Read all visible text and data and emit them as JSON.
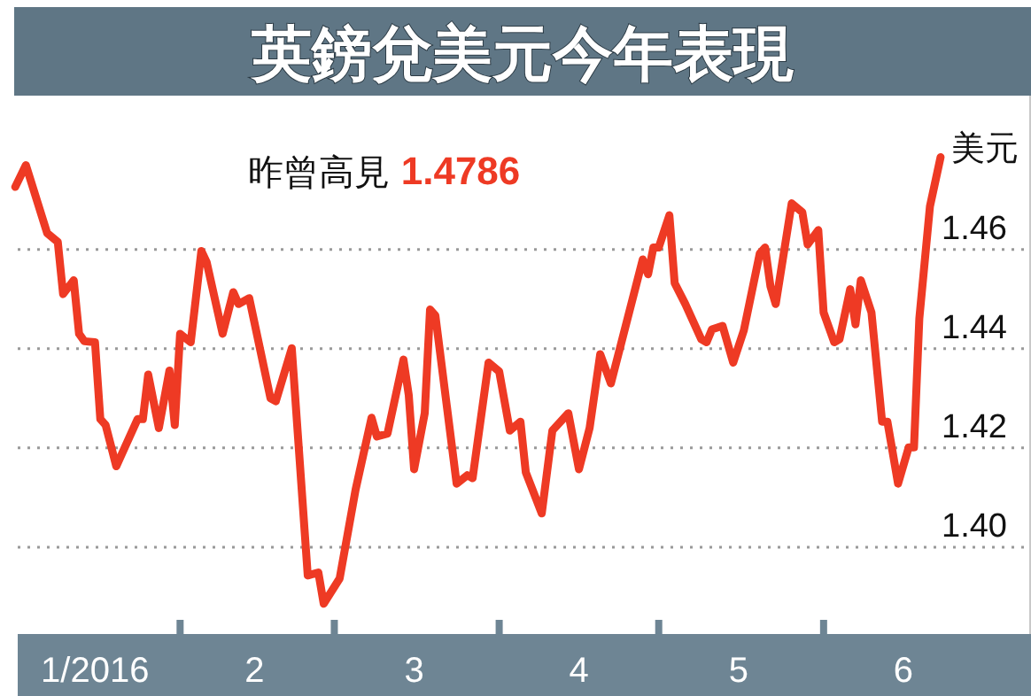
{
  "chart_data": {
    "type": "line",
    "title": "英鎊兌美元今年表現",
    "ylabel": "美元",
    "annotations": [
      "昨曾高見 **1.4786**"
    ],
    "x": [
      "2016-01-01",
      "2016-01-03",
      "2016-01-07",
      "2016-01-09",
      "2016-01-10",
      "2016-01-12",
      "2016-01-13",
      "2016-01-14",
      "2016-01-16",
      "2016-01-17",
      "2016-01-18",
      "2016-01-20",
      "2016-01-24",
      "2016-01-25",
      "2016-01-26",
      "2016-01-28",
      "2016-01-30",
      "2016-01-31",
      "2016-02-01",
      "2016-02-03",
      "2016-02-05",
      "2016-02-06",
      "2016-02-09",
      "2016-02-11",
      "2016-02-12",
      "2016-02-14",
      "2016-02-16",
      "2016-02-18",
      "2016-02-19",
      "2016-02-22",
      "2016-02-25",
      "2016-02-27",
      "2016-02-28",
      "2016-03-02",
      "2016-03-05",
      "2016-03-08",
      "2016-03-09",
      "2016-03-11",
      "2016-03-14",
      "2016-03-15",
      "2016-03-16",
      "2016-03-18",
      "2016-03-19",
      "2016-03-20",
      "2016-03-24",
      "2016-03-26",
      "2016-03-27",
      "2016-03-30",
      "2016-04-01",
      "2016-04-03",
      "2016-04-05",
      "2016-04-06",
      "2016-04-09",
      "2016-04-11",
      "2016-04-14",
      "2016-04-16",
      "2016-04-18",
      "2016-04-20",
      "2016-04-22",
      "2016-04-28",
      "2016-04-29",
      "2016-04-30",
      "2016-05-01",
      "2016-05-03",
      "2016-05-04",
      "2016-05-06",
      "2016-05-09",
      "2016-05-10",
      "2016-05-11",
      "2016-05-13",
      "2016-05-15",
      "2016-05-17",
      "2016-05-20",
      "2016-05-21",
      "2016-05-22",
      "2016-05-23",
      "2016-05-26",
      "2016-05-28",
      "2016-05-29",
      "2016-05-31",
      "2016-06-01",
      "2016-06-03",
      "2016-06-04",
      "2016-06-06",
      "2016-06-07",
      "2016-06-08",
      "2016-06-10",
      "2016-06-12",
      "2016-06-13",
      "2016-06-15",
      "2016-06-17",
      "2016-06-18",
      "2016-06-19",
      "2016-06-21",
      "2016-06-23"
    ],
    "series": [
      {
        "color": "#ee3a24",
        "values": [
          1.4726,
          1.477,
          1.4633,
          1.4615,
          1.451,
          1.4538,
          1.443,
          1.4415,
          1.4413,
          1.4258,
          1.4246,
          1.4163,
          1.4258,
          1.4258,
          1.4348,
          1.424,
          1.4356,
          1.4246,
          1.443,
          1.4413,
          1.4597,
          1.4574,
          1.443,
          1.4514,
          1.449,
          1.4502,
          1.4401,
          1.43,
          1.4294,
          1.4401,
          1.3943,
          1.3949,
          1.3886,
          1.3937,
          1.4116,
          1.4261,
          1.4223,
          1.4229,
          1.4378,
          1.4306,
          1.4157,
          1.427,
          1.4479,
          1.4467,
          1.4128,
          1.4145,
          1.4139,
          1.4372,
          1.4354,
          1.4235,
          1.4253,
          1.4151,
          1.4068,
          1.4235,
          1.427,
          1.4157,
          1.424,
          1.4389,
          1.433,
          1.458,
          1.455,
          1.4604,
          1.4604,
          1.4669,
          1.4532,
          1.449,
          1.4419,
          1.4413,
          1.4439,
          1.4446,
          1.4372,
          1.4437,
          1.4592,
          1.4604,
          1.4526,
          1.449,
          1.4693,
          1.4675,
          1.461,
          1.4639,
          1.4473,
          1.4413,
          1.4419,
          1.452,
          1.4449,
          1.4538,
          1.4473,
          1.4253,
          1.4253,
          1.4128,
          1.4201,
          1.4201,
          1.4461,
          1.4687,
          1.4786
        ]
      }
    ],
    "xlim": [
      "2016-01-01",
      "2016-07-10"
    ],
    "ylim": [
      1.3825,
      1.491
    ],
    "xticks": [
      {
        "value": "2016-01-16",
        "label": "1/2016"
      },
      {
        "value": "2016-02-01",
        "label": null
      },
      {
        "value": "2016-02-15",
        "label": "2"
      },
      {
        "value": "2016-03-01",
        "label": null
      },
      {
        "value": "2016-03-16",
        "label": "3"
      },
      {
        "value": "2016-04-01",
        "label": null
      },
      {
        "value": "2016-04-16",
        "label": "4"
      },
      {
        "value": "2016-05-01",
        "label": null
      },
      {
        "value": "2016-05-16",
        "label": "5"
      },
      {
        "value": "2016-06-01",
        "label": null
      },
      {
        "value": "2016-06-16",
        "label": "6"
      }
    ],
    "yticks": [
      {
        "value": 1.4,
        "label": "1.40"
      },
      1.42,
      1.44,
      1.46
    ],
    "grid": "y",
    "line_style": "solid"
  }
}
